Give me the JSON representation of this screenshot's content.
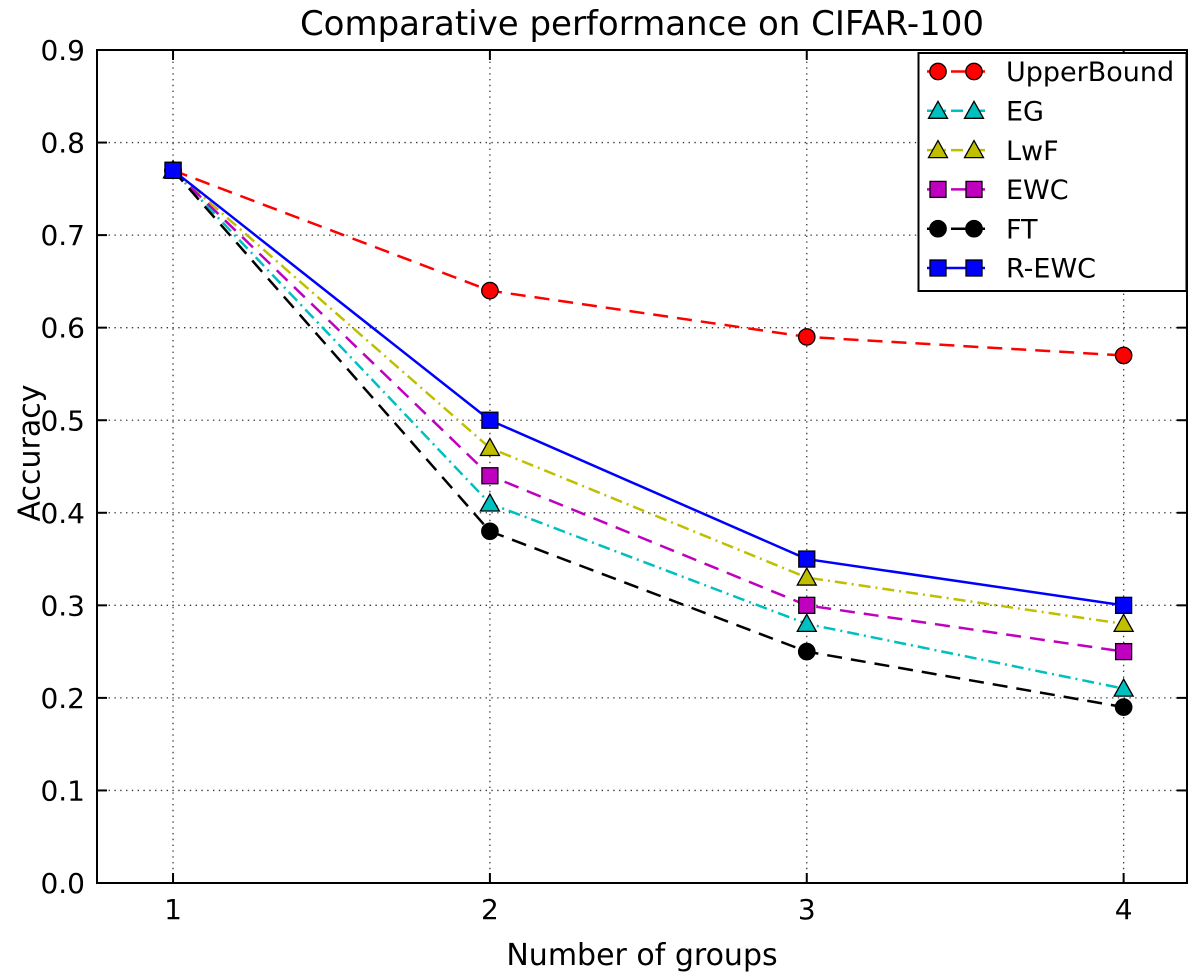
{
  "chart_data": {
    "type": "line",
    "title": "Comparative performance on CIFAR-100",
    "xlabel": "Number of groups",
    "ylabel": "Accuracy",
    "x": [
      1,
      2,
      3,
      4
    ],
    "xlim": [
      0.76,
      4.2
    ],
    "ylim": [
      0.0,
      0.9
    ],
    "xtick_labels": [
      "1",
      "2",
      "3",
      "4"
    ],
    "xtick_values": [
      1,
      2,
      3,
      4
    ],
    "ytick_labels": [
      "0.0",
      "0.1",
      "0.2",
      "0.3",
      "0.4",
      "0.5",
      "0.6",
      "0.7",
      "0.8",
      "0.9"
    ],
    "ytick_values": [
      0.0,
      0.1,
      0.2,
      0.3,
      0.4,
      0.5,
      0.6,
      0.7,
      0.8,
      0.9
    ],
    "grid": true,
    "grid_style": "dotted",
    "legend_position": "upper right",
    "series": [
      {
        "name": "UpperBound",
        "color": "#ff0000",
        "linestyle": "dashed",
        "marker": "circle",
        "values": [
          0.77,
          0.64,
          0.59,
          0.57
        ]
      },
      {
        "name": "EG",
        "color": "#00bfbf",
        "linestyle": "dashdot",
        "marker": "triangle",
        "values": [
          0.77,
          0.41,
          0.28,
          0.21
        ]
      },
      {
        "name": "LwF",
        "color": "#bfbf00",
        "linestyle": "dashdot",
        "marker": "triangle",
        "values": [
          0.77,
          0.47,
          0.33,
          0.28
        ]
      },
      {
        "name": "EWC",
        "color": "#bf00bf",
        "linestyle": "dashed",
        "marker": "square",
        "values": [
          0.77,
          0.44,
          0.3,
          0.25
        ]
      },
      {
        "name": "FT",
        "color": "#000000",
        "linestyle": "dashed",
        "marker": "circle",
        "values": [
          0.77,
          0.38,
          0.25,
          0.19
        ]
      },
      {
        "name": "R-EWC",
        "color": "#0000ff",
        "linestyle": "solid",
        "marker": "square",
        "values": [
          0.77,
          0.5,
          0.35,
          0.3
        ]
      }
    ]
  }
}
